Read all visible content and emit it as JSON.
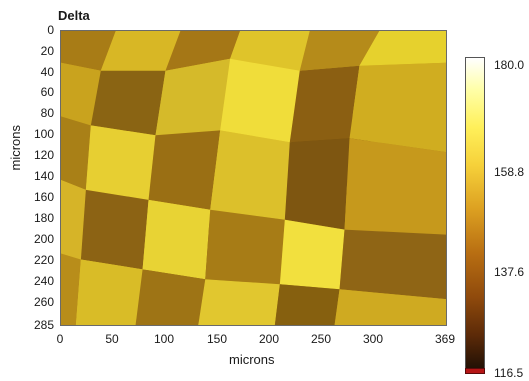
{
  "title": "Delta",
  "axes": {
    "ylabel": "microns",
    "xlabel": "microns",
    "yticks": [
      "0",
      "20",
      "40",
      "60",
      "80",
      "100",
      "120",
      "140",
      "160",
      "180",
      "200",
      "220",
      "240",
      "260",
      "285"
    ],
    "xticks": [
      "0",
      "50",
      "100",
      "150",
      "200",
      "250",
      "300",
      "369"
    ]
  },
  "colorbar": {
    "labels": [
      "180.0",
      "158.8",
      "137.6",
      "116.5"
    ],
    "colors": [
      "#ffffff",
      "#ffffa8",
      "#fff05a",
      "#f6d13a",
      "#dca021",
      "#b86e12",
      "#8f4a0c",
      "#5c2a08",
      "#1a0d04"
    ]
  }
}
